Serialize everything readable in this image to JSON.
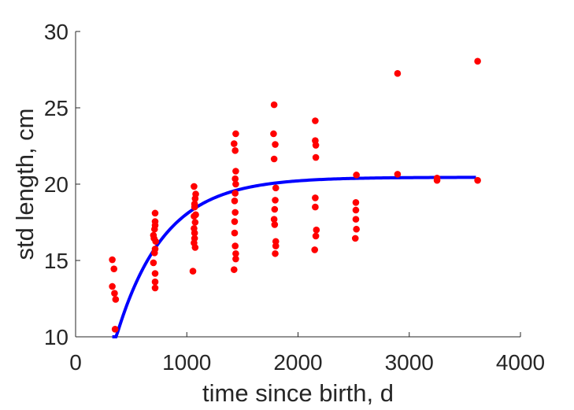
{
  "chart_data": {
    "type": "scatter",
    "title": "",
    "xlabel": "time since birth, d",
    "ylabel": "std length, cm",
    "xlim": [
      0,
      4000
    ],
    "ylim": [
      10,
      30
    ],
    "xticks": [
      0,
      1000,
      2000,
      3000,
      4000
    ],
    "yticks": [
      10,
      15,
      20,
      25,
      30
    ],
    "grid": false,
    "colors": {
      "points": "#ff0000",
      "fit": "#0000ff",
      "axes": "#262626"
    },
    "points": [
      [
        330,
        15.05
      ],
      [
        345,
        14.45
      ],
      [
        330,
        13.3
      ],
      [
        350,
        12.85
      ],
      [
        360,
        12.45
      ],
      [
        355,
        10.5
      ],
      [
        715,
        18.1
      ],
      [
        715,
        17.55
      ],
      [
        715,
        17.3
      ],
      [
        710,
        17.05
      ],
      [
        700,
        16.65
      ],
      [
        705,
        16.45
      ],
      [
        720,
        16.25
      ],
      [
        715,
        15.75
      ],
      [
        710,
        15.5
      ],
      [
        700,
        14.85
      ],
      [
        715,
        14.15
      ],
      [
        715,
        13.6
      ],
      [
        715,
        13.2
      ],
      [
        1065,
        19.85
      ],
      [
        1080,
        19.35
      ],
      [
        1075,
        19.05
      ],
      [
        1070,
        18.7
      ],
      [
        1070,
        18.5
      ],
      [
        1080,
        18.0
      ],
      [
        1065,
        17.9
      ],
      [
        1075,
        17.5
      ],
      [
        1065,
        17.1
      ],
      [
        1070,
        16.8
      ],
      [
        1070,
        16.45
      ],
      [
        1065,
        16.15
      ],
      [
        1075,
        15.85
      ],
      [
        1055,
        14.3
      ],
      [
        1440,
        23.3
      ],
      [
        1425,
        22.65
      ],
      [
        1435,
        22.2
      ],
      [
        1440,
        20.85
      ],
      [
        1435,
        20.35
      ],
      [
        1440,
        20.0
      ],
      [
        1435,
        19.4
      ],
      [
        1430,
        18.9
      ],
      [
        1435,
        18.15
      ],
      [
        1430,
        17.55
      ],
      [
        1430,
        16.8
      ],
      [
        1435,
        15.95
      ],
      [
        1440,
        15.45
      ],
      [
        1440,
        15.1
      ],
      [
        1425,
        14.4
      ],
      [
        1785,
        25.2
      ],
      [
        1780,
        23.3
      ],
      [
        1795,
        22.6
      ],
      [
        1785,
        21.65
      ],
      [
        1800,
        19.75
      ],
      [
        1795,
        18.95
      ],
      [
        1790,
        18.35
      ],
      [
        1785,
        17.7
      ],
      [
        1790,
        17.35
      ],
      [
        1800,
        16.25
      ],
      [
        1800,
        15.95
      ],
      [
        1795,
        15.45
      ],
      [
        2155,
        24.15
      ],
      [
        2155,
        22.85
      ],
      [
        2160,
        22.55
      ],
      [
        2160,
        21.75
      ],
      [
        2155,
        19.1
      ],
      [
        2155,
        18.5
      ],
      [
        2165,
        17.0
      ],
      [
        2160,
        16.6
      ],
      [
        2150,
        15.7
      ],
      [
        2525,
        20.6
      ],
      [
        2520,
        18.8
      ],
      [
        2520,
        18.3
      ],
      [
        2520,
        17.7
      ],
      [
        2525,
        17.05
      ],
      [
        2515,
        16.45
      ],
      [
        2895,
        27.25
      ],
      [
        2895,
        20.65
      ],
      [
        3250,
        20.4
      ],
      [
        3250,
        20.25
      ],
      [
        3615,
        28.05
      ],
      [
        3615,
        20.25
      ]
    ],
    "fit_curve": {
      "name": "",
      "model": "von Bertalanffy",
      "x_range": [
        330,
        3600
      ],
      "L_inf": 20.45,
      "k": 0.00232,
      "t0": 76
    }
  }
}
